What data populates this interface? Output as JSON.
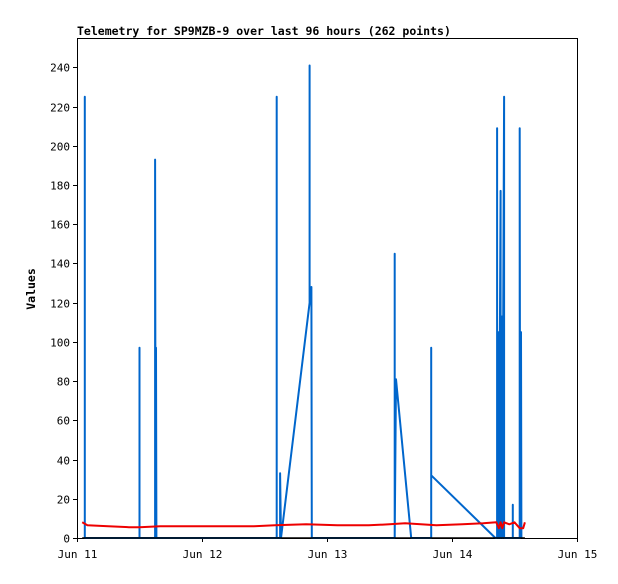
{
  "chart_data": {
    "type": "line",
    "title": "Telemetry for SP9MZB-9 over last 96 hours (262 points)",
    "xlabel": "",
    "ylabel": "Values",
    "xlim": [
      "Jun 11",
      "Jun 15"
    ],
    "ylim": [
      0,
      255
    ],
    "x_ticks": [
      "Jun 11",
      "Jun 12",
      "Jun 13",
      "Jun 14",
      "Jun 15"
    ],
    "y_ticks": [
      0,
      20,
      40,
      60,
      80,
      100,
      120,
      140,
      160,
      180,
      200,
      220,
      240
    ],
    "grid": false,
    "legend": "none",
    "colors": {
      "series_blue": "#0066cc",
      "series_red": "#ee0000",
      "series_black": "#000000",
      "axis": "#000000"
    },
    "series": [
      {
        "color": "#0066cc",
        "points": [
          [
            "Jun 11 01:30",
            0
          ],
          [
            "Jun 11 01:30",
            225
          ],
          [
            "Jun 11 01:30",
            0
          ],
          [
            "Jun 11 12:00",
            0
          ],
          [
            "Jun 11 12:00",
            97
          ],
          [
            "Jun 11 12:00",
            0
          ],
          [
            "Jun 11 15:00",
            0
          ],
          [
            "Jun 11 15:00",
            193
          ],
          [
            "Jun 11 15:05",
            0
          ],
          [
            "Jun 11 15:10",
            97
          ],
          [
            "Jun 11 15:15",
            0
          ],
          [
            "Jun 12 14:20",
            0
          ],
          [
            "Jun 12 14:20",
            225
          ],
          [
            "Jun 12 14:20",
            0
          ],
          [
            "Jun 12 15:00",
            0
          ],
          [
            "Jun 12 15:00",
            33
          ],
          [
            "Jun 12 15:10",
            0
          ],
          [
            "Jun 12 20:40",
            120
          ],
          [
            "Jun 12 20:40",
            241
          ],
          [
            "Jun 12 20:40",
            120
          ],
          [
            "Jun 12 21:00",
            128
          ],
          [
            "Jun 12 21:05",
            0
          ],
          [
            "Jun 13 13:00",
            0
          ],
          [
            "Jun 13 13:00",
            145
          ],
          [
            "Jun 13 13:00",
            0
          ],
          [
            "Jun 13 13:15",
            81
          ],
          [
            "Jun 13 16:10",
            0
          ],
          [
            "Jun 13 20:00",
            0
          ],
          [
            "Jun 13 20:00",
            97
          ],
          [
            "Jun 13 20:00",
            32
          ],
          [
            "Jun 14 08:20",
            0
          ],
          [
            "Jun 14 08:40",
            0
          ],
          [
            "Jun 14 08:40",
            209
          ],
          [
            "Jun 14 08:40",
            0
          ],
          [
            "Jun 14 09:00",
            105
          ],
          [
            "Jun 14 09:00",
            0
          ],
          [
            "Jun 14 09:20",
            177
          ],
          [
            "Jun 14 09:20",
            0
          ],
          [
            "Jun 14 09:40",
            113
          ],
          [
            "Jun 14 09:40",
            0
          ],
          [
            "Jun 14 10:00",
            225
          ],
          [
            "Jun 14 10:00",
            0
          ],
          [
            "Jun 14 11:40",
            0
          ],
          [
            "Jun 14 11:40",
            17
          ],
          [
            "Jun 14 11:40",
            0
          ],
          [
            "Jun 14 13:00",
            0
          ],
          [
            "Jun 14 13:00",
            209
          ],
          [
            "Jun 14 13:05",
            0
          ],
          [
            "Jun 14 13:15",
            105
          ],
          [
            "Jun 14 13:20",
            0
          ]
        ]
      },
      {
        "color": "#ee0000",
        "points": [
          [
            "Jun 11 01:00",
            8
          ],
          [
            "Jun 11 02:00",
            6.5
          ],
          [
            "Jun 11 06:00",
            6
          ],
          [
            "Jun 11 10:00",
            5.5
          ],
          [
            "Jun 11 12:00",
            5.5
          ],
          [
            "Jun 11 16:00",
            6
          ],
          [
            "Jun 11 22:00",
            6
          ],
          [
            "Jun 12 04:00",
            6
          ],
          [
            "Jun 12 10:00",
            6
          ],
          [
            "Jun 12 14:00",
            6.5
          ],
          [
            "Jun 12 20:00",
            7
          ],
          [
            "Jun 13 02:00",
            6.5
          ],
          [
            "Jun 13 08:00",
            6.5
          ],
          [
            "Jun 13 12:00",
            7
          ],
          [
            "Jun 13 15:00",
            7.5
          ],
          [
            "Jun 13 18:00",
            7
          ],
          [
            "Jun 13 21:00",
            6.5
          ],
          [
            "Jun 14 02:00",
            7
          ],
          [
            "Jun 14 06:00",
            7.5
          ],
          [
            "Jun 14 08:30",
            8
          ],
          [
            "Jun 14 09:00",
            5
          ],
          [
            "Jun 14 09:20",
            8
          ],
          [
            "Jun 14 09:40",
            5
          ],
          [
            "Jun 14 10:00",
            8
          ],
          [
            "Jun 14 11:00",
            7
          ],
          [
            "Jun 14 12:00",
            8
          ],
          [
            "Jun 14 13:00",
            5
          ],
          [
            "Jun 14 13:40",
            5
          ],
          [
            "Jun 14 14:00",
            8
          ]
        ]
      },
      {
        "color": "#000000",
        "points": [
          [
            "Jun 11 01:00",
            0
          ],
          [
            "Jun 14 14:00",
            0
          ]
        ]
      }
    ]
  }
}
